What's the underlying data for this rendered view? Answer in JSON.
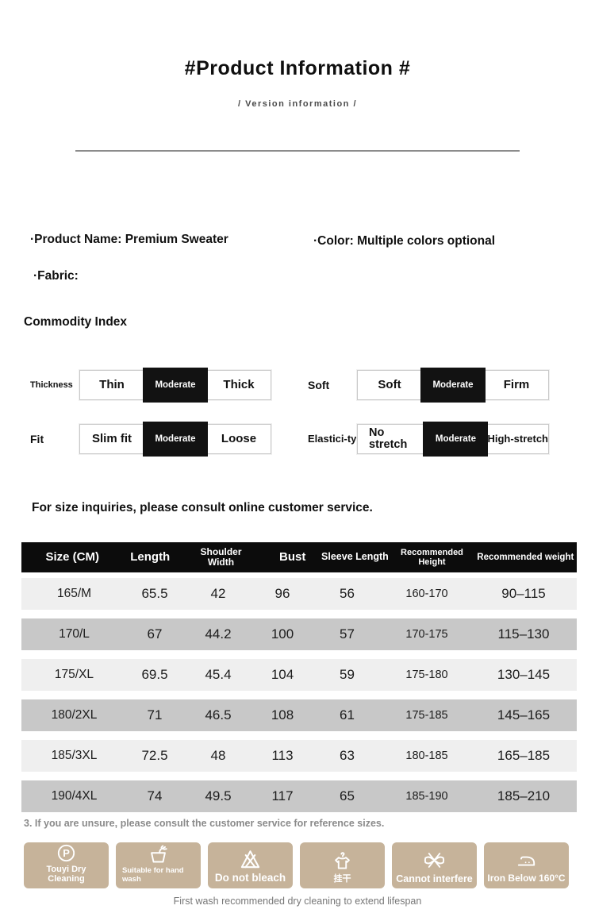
{
  "header": {
    "title": "#Product Information #",
    "subtitle": "/ Version information /"
  },
  "product": {
    "name_line": "·Product Name: Premium Sweater",
    "color_line": "·Color: Multiple colors optional",
    "fabric_line": "·Fabric:"
  },
  "commodity_index": {
    "heading": "Commodity Index",
    "selectors": [
      {
        "label": "Thickness",
        "options": [
          "Thin",
          "Moderate",
          "Thick"
        ],
        "selected": 1
      },
      {
        "label": "Soft",
        "options": [
          "Soft",
          "Moderate",
          "Firm"
        ],
        "selected": 1
      },
      {
        "label": "Fit",
        "options": [
          "Slim fit",
          "Moderate",
          "Loose"
        ],
        "selected": 1
      },
      {
        "label": "Elastici-ty",
        "options": [
          "No stretch",
          "Moderate",
          "High-stretch"
        ],
        "selected": 1
      }
    ]
  },
  "size_section": {
    "intro": "For size inquiries, please consult online customer service.",
    "table": {
      "headers": [
        "Size (CM)",
        "Length",
        "Shoulder Width",
        "Bust",
        "Sleeve Length",
        "Recommended Height",
        "Recommended weight"
      ],
      "rows": [
        [
          "165/M",
          "65.5",
          "42",
          "96",
          "56",
          "160-170",
          "90–115"
        ],
        [
          "170/L",
          "67",
          "44.2",
          "100",
          "57",
          "170-175",
          "115–130"
        ],
        [
          "175/XL",
          "69.5",
          "45.4",
          "104",
          "59",
          "175-180",
          "130–145"
        ],
        [
          "180/2XL",
          "71",
          "46.5",
          "108",
          "61",
          "175-185",
          "145–165"
        ],
        [
          "185/3XL",
          "72.5",
          "48",
          "113",
          "63",
          "180-185",
          "165–185"
        ],
        [
          "190/4XL",
          "74",
          "49.5",
          "117",
          "65",
          "185-190",
          "185–210"
        ]
      ]
    },
    "note": "3. If you are unsure, please consult the customer service for reference sizes."
  },
  "care": {
    "items": [
      {
        "icon": "dry-clean-p-icon",
        "label": "Touyi Dry Cleaning"
      },
      {
        "icon": "hand-wash-icon",
        "label": "Suitable for hand wash"
      },
      {
        "icon": "do-not-bleach-icon",
        "label": "Do not bleach"
      },
      {
        "icon": "hang-dry-icon",
        "label": "挂干"
      },
      {
        "icon": "do-not-wring-icon",
        "label": "Cannot interfere"
      },
      {
        "icon": "iron-icon",
        "label": "Iron Below 160°C"
      }
    ],
    "footer": "First wash recommended dry cleaning to extend lifespan"
  },
  "colors": {
    "header_bar": "#0c0c0c",
    "selected_option": "#121212",
    "row_light": "#efefef",
    "row_dark": "#c8c8c8",
    "care_box": "#c6b39a",
    "muted_text": "#8a8a8a"
  }
}
